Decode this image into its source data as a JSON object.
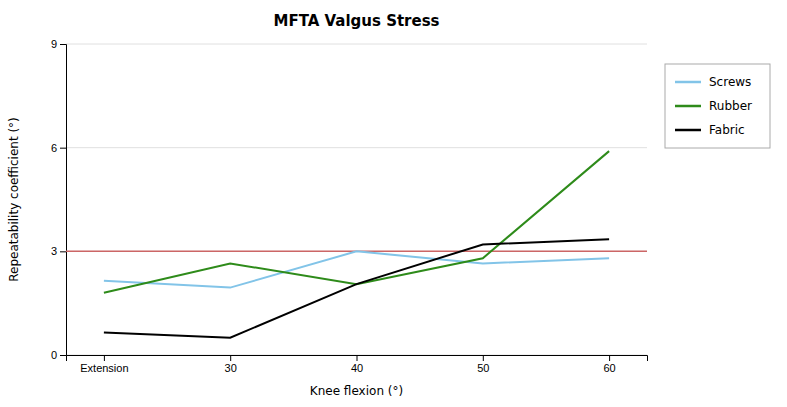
{
  "chart_data": {
    "type": "line",
    "title": "MFTA Valgus Stress",
    "x_label": "Knee flexion (°)",
    "y_label": "Repeatability coefficient (°)",
    "categories": [
      "Extension",
      "30",
      "40",
      "50",
      "60"
    ],
    "series": [
      {
        "name": "Screws",
        "color": "#82C4E8",
        "values": [
          2.15,
          1.95,
          3.0,
          2.65,
          2.8
        ]
      },
      {
        "name": "Rubber",
        "color": "#2E8B1A",
        "values": [
          1.8,
          2.65,
          2.05,
          2.8,
          5.9
        ]
      },
      {
        "name": "Fabric",
        "color": "#000000",
        "values": [
          0.65,
          0.5,
          2.05,
          3.2,
          3.35
        ]
      }
    ],
    "hline": {
      "value": 3.0,
      "color": "#CC6666"
    },
    "ylim": [
      0,
      9
    ],
    "yticks": [
      0,
      3,
      6,
      9
    ],
    "grid": true,
    "legend": "right"
  }
}
